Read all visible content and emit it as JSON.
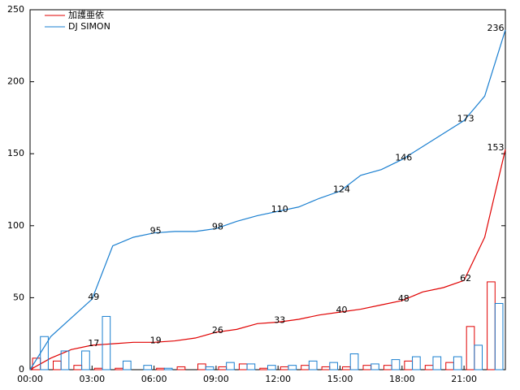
{
  "chart_data": {
    "type": "cumulative-bar",
    "x": [
      0,
      1,
      2,
      3,
      4,
      5,
      6,
      7,
      8,
      9,
      10,
      11,
      12,
      13,
      14,
      15,
      16,
      17,
      18,
      19,
      20,
      21,
      22,
      23
    ],
    "xlim": [
      0,
      23
    ],
    "xticks": [
      {
        "value": 0,
        "label": "00:00"
      },
      {
        "value": 3,
        "label": "03:00"
      },
      {
        "value": 6,
        "label": "06:00"
      },
      {
        "value": 9,
        "label": "09:00"
      },
      {
        "value": 12,
        "label": "12:00"
      },
      {
        "value": 15,
        "label": "15:00"
      },
      {
        "value": 18,
        "label": "18:00"
      },
      {
        "value": 21,
        "label": "21:00"
      }
    ],
    "ylim": [
      0,
      250
    ],
    "yticks": [
      0,
      50,
      100,
      150,
      200,
      250
    ],
    "legend": "top-left",
    "series": [
      {
        "name": "加護亜依",
        "color": "#e00000",
        "counts": [
          8,
          6,
          3,
          1,
          1,
          0,
          1,
          2,
          4,
          2,
          4,
          1,
          2,
          3,
          2,
          2,
          3,
          3,
          6,
          3,
          5,
          30,
          61
        ],
        "cumulative": [
          0,
          8,
          14,
          17,
          18,
          19,
          19,
          20,
          22,
          26,
          28,
          32,
          33,
          35,
          38,
          40,
          42,
          45,
          48,
          54,
          57,
          62,
          92,
          153
        ]
      },
      {
        "name": "DJ SIMON",
        "color": "#1a7fd0",
        "counts": [
          23,
          13,
          13,
          37,
          6,
          3,
          1,
          0,
          2,
          5,
          4,
          3,
          3,
          6,
          5,
          11,
          4,
          7,
          9,
          9,
          9,
          17,
          46
        ],
        "cumulative": [
          0,
          23,
          36,
          49,
          86,
          92,
          95,
          96,
          96,
          98,
          103,
          107,
          110,
          113,
          119,
          124,
          135,
          139,
          146,
          155,
          164,
          173,
          190,
          236
        ]
      }
    ]
  }
}
